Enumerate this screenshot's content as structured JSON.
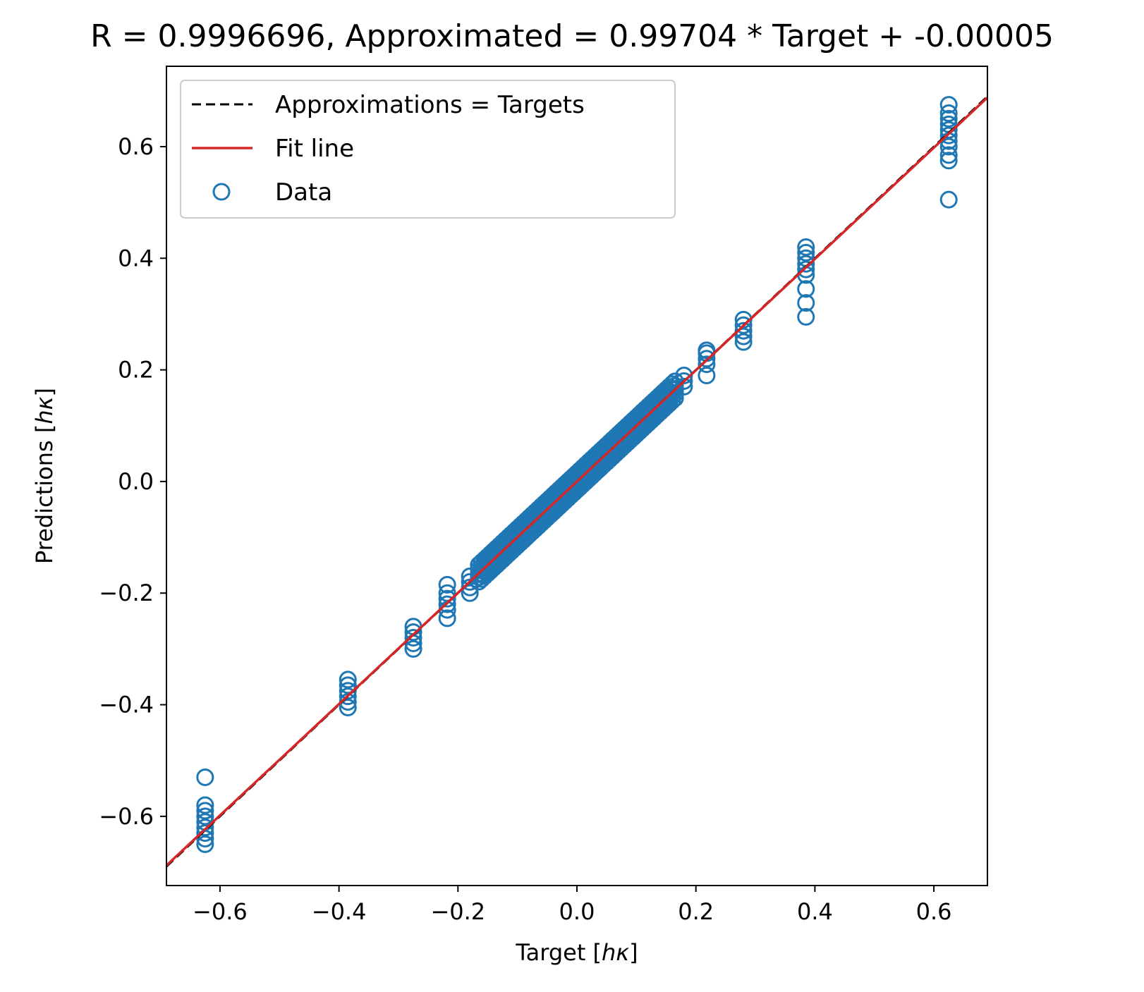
{
  "chart_data": {
    "type": "scatter",
    "title": "R = 0.9996696, Approximated = 0.99704 * Target + -0.00005",
    "xlabel": "Target [",
    "xlabel_var": "hκ",
    "xlabel_close": "]",
    "ylabel": "Predictions [",
    "ylabel_var": "hκ",
    "ylabel_close": "]",
    "xlim": [
      -0.69,
      0.69
    ],
    "ylim": [
      -0.724,
      0.744
    ],
    "xticks": [
      -0.6,
      -0.4,
      -0.2,
      0.0,
      0.2,
      0.4,
      0.6
    ],
    "xtick_labels": [
      "−0.6",
      "−0.4",
      "−0.2",
      "0.0",
      "0.2",
      "0.4",
      "0.6"
    ],
    "yticks": [
      -0.6,
      -0.4,
      -0.2,
      0.0,
      0.2,
      0.4,
      0.6
    ],
    "ytick_labels": [
      "−0.6",
      "−0.4",
      "−0.2",
      "0.0",
      "0.2",
      "0.4",
      "0.6"
    ],
    "grid": false,
    "legend_position": "top-left",
    "legend": [
      {
        "label": "Approximations = Targets",
        "kind": "dashed-line",
        "color": "#000000"
      },
      {
        "label": "Fit line",
        "kind": "line",
        "color": "#d62728"
      },
      {
        "label": "Data",
        "kind": "marker",
        "color": "#1f77b4"
      }
    ],
    "identity_line": {
      "name": "Approximations = Targets",
      "slope": 1.0,
      "intercept": 0.0,
      "color": "#000000",
      "style": "dashed"
    },
    "fit_line": {
      "name": "Fit line",
      "slope": 0.99704,
      "intercept": -5e-05,
      "color": "#d62728"
    },
    "series": [
      {
        "name": "Data",
        "color": "#1f77b4",
        "marker": "open-circle",
        "clusters": [
          {
            "x": -0.625,
            "y": [
              -0.53,
              -0.58,
              -0.59,
              -0.6,
              -0.61,
              -0.62,
              -0.63,
              -0.64,
              -0.65
            ]
          },
          {
            "x": -0.385,
            "y": [
              -0.355,
              -0.365,
              -0.375,
              -0.385,
              -0.395,
              -0.405
            ]
          },
          {
            "x": -0.275,
            "y": [
              -0.26,
              -0.27,
              -0.28,
              -0.29,
              -0.3
            ]
          },
          {
            "x": -0.218,
            "y": [
              -0.185,
              -0.2,
              -0.21,
              -0.22,
              -0.23,
              -0.245
            ]
          },
          {
            "x": -0.18,
            "y": [
              -0.17,
              -0.18,
              -0.19,
              -0.2
            ]
          },
          {
            "x": 0.18,
            "y": [
              0.17,
              0.18,
              0.19
            ]
          },
          {
            "x": 0.218,
            "y": [
              0.19,
              0.21,
              0.22,
              0.23,
              0.235
            ]
          },
          {
            "x": 0.28,
            "y": [
              0.25,
              0.26,
              0.27,
              0.28,
              0.29
            ]
          },
          {
            "x": 0.385,
            "y": [
              0.295,
              0.32,
              0.345,
              0.37,
              0.38,
              0.39,
              0.4,
              0.41,
              0.42
            ]
          },
          {
            "x": 0.625,
            "y": [
              0.505,
              0.575,
              0.585,
              0.6,
              0.61,
              0.62,
              0.63,
              0.64,
              0.65,
              0.66,
              0.675
            ]
          }
        ],
        "band": {
          "x_from": -0.165,
          "x_to": 0.165,
          "offsets": [
            -0.015,
            -0.007,
            0.0,
            0.007,
            0.015
          ]
        }
      }
    ]
  }
}
